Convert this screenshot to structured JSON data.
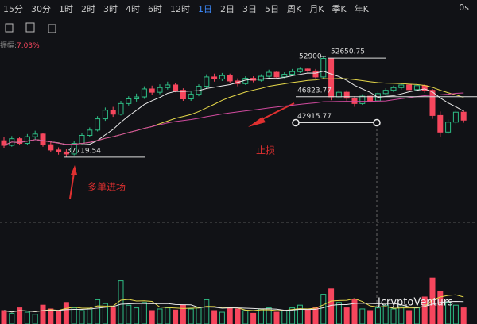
{
  "toolbar": {
    "tabs": [
      "15分",
      "30分",
      "1时",
      "2时",
      "3时",
      "4时",
      "6时",
      "12时",
      "1日",
      "2日",
      "3日",
      "5日",
      "周K",
      "月K",
      "季K",
      "年K"
    ],
    "active": "1日",
    "refresh": "0s"
  },
  "amplitude_label": "振幅:",
  "amplitude": "7.03%",
  "chart_data": {
    "type": "candlestick",
    "candles": [
      [
        40200,
        40700,
        39100,
        39500
      ],
      [
        39500,
        40900,
        39300,
        40500
      ],
      [
        40500,
        40800,
        39500,
        39800
      ],
      [
        39800,
        41200,
        39600,
        40800
      ],
      [
        40800,
        41700,
        40400,
        41200
      ],
      [
        41200,
        41400,
        39300,
        39600
      ],
      [
        39600,
        40000,
        38500,
        38800
      ],
      [
        38800,
        39200,
        38100,
        38500
      ],
      [
        38500,
        38900,
        37720,
        38200
      ],
      [
        38200,
        40100,
        38000,
        39800
      ],
      [
        39800,
        41400,
        39600,
        41000
      ],
      [
        41000,
        42200,
        40700,
        41800
      ],
      [
        41800,
        43900,
        41600,
        43500
      ],
      [
        43500,
        45200,
        43200,
        44800
      ],
      [
        44800,
        45300,
        43800,
        44200
      ],
      [
        44200,
        46200,
        44000,
        45800
      ],
      [
        45800,
        46900,
        45500,
        46500
      ],
      [
        46500,
        47300,
        46100,
        46800
      ],
      [
        46800,
        48400,
        46500,
        48000
      ],
      [
        48000,
        48500,
        47100,
        47500
      ],
      [
        47500,
        48700,
        47200,
        48200
      ],
      [
        48200,
        49100,
        47900,
        48600
      ],
      [
        48600,
        48900,
        47500,
        47800
      ],
      [
        47800,
        48100,
        46200,
        46500
      ],
      [
        46500,
        47600,
        46200,
        47200
      ],
      [
        47200,
        48700,
        46900,
        48400
      ],
      [
        48400,
        50200,
        48100,
        49800
      ],
      [
        49800,
        50300,
        49100,
        49500
      ],
      [
        49500,
        50400,
        49200,
        50000
      ],
      [
        50000,
        50300,
        48900,
        49200
      ],
      [
        49200,
        49600,
        48400,
        48800
      ],
      [
        48800,
        49900,
        48600,
        49600
      ],
      [
        49600,
        49900,
        49000,
        49300
      ],
      [
        49300,
        50200,
        49100,
        49900
      ],
      [
        49900,
        50900,
        49700,
        50500
      ],
      [
        50500,
        50700,
        49500,
        49800
      ],
      [
        49800,
        50500,
        49600,
        50200
      ],
      [
        50200,
        51000,
        50000,
        50600
      ],
      [
        50600,
        51300,
        50400,
        51000
      ],
      [
        51000,
        51200,
        50300,
        50700
      ],
      [
        50700,
        51000,
        49600,
        49800
      ],
      [
        49800,
        52900,
        49600,
        52600
      ],
      [
        52600,
        52650,
        46300,
        46800
      ],
      [
        46800,
        47900,
        46500,
        47500
      ],
      [
        47500,
        47800,
        46200,
        46600
      ],
      [
        46600,
        46900,
        45300,
        45800
      ],
      [
        45800,
        47200,
        45600,
        46900
      ],
      [
        46900,
        47100,
        45900,
        46200
      ],
      [
        46200,
        47600,
        46000,
        47300
      ],
      [
        47300,
        48100,
        47000,
        47800
      ],
      [
        47800,
        48500,
        47500,
        48200
      ],
      [
        48200,
        48900,
        47900,
        48600
      ],
      [
        48600,
        48800,
        47600,
        47900
      ],
      [
        47900,
        48800,
        47700,
        48500
      ],
      [
        48500,
        48700,
        47400,
        47800
      ],
      [
        47800,
        48000,
        43500,
        44000
      ],
      [
        44000,
        44600,
        40800,
        41500
      ],
      [
        41500,
        43400,
        41200,
        43000
      ],
      [
        43000,
        44900,
        42700,
        44500
      ],
      [
        44500,
        44800,
        42900,
        43300
      ]
    ],
    "volumes": [
      25,
      20,
      30,
      22,
      18,
      35,
      28,
      24,
      40,
      30,
      25,
      28,
      45,
      38,
      30,
      80,
      35,
      30,
      40,
      25,
      28,
      30,
      26,
      35,
      28,
      30,
      45,
      25,
      22,
      30,
      28,
      25,
      20,
      28,
      30,
      22,
      25,
      30,
      35,
      28,
      30,
      55,
      65,
      40,
      30,
      45,
      28,
      25,
      30,
      35,
      28,
      32,
      25,
      30,
      50,
      85,
      60,
      40,
      35,
      30
    ],
    "ylim": [
      28500,
      59000
    ],
    "volume_ylim": [
      0,
      100
    ],
    "high_label": 52900,
    "levels": [
      52650.75,
      46823.77,
      42915.77,
      37719.54
    ],
    "annotations": [
      "止损",
      "多单进场"
    ],
    "up_color": "#2ebd85",
    "down_color": "#f6465d"
  },
  "watermark": "JcryptoVenturs"
}
